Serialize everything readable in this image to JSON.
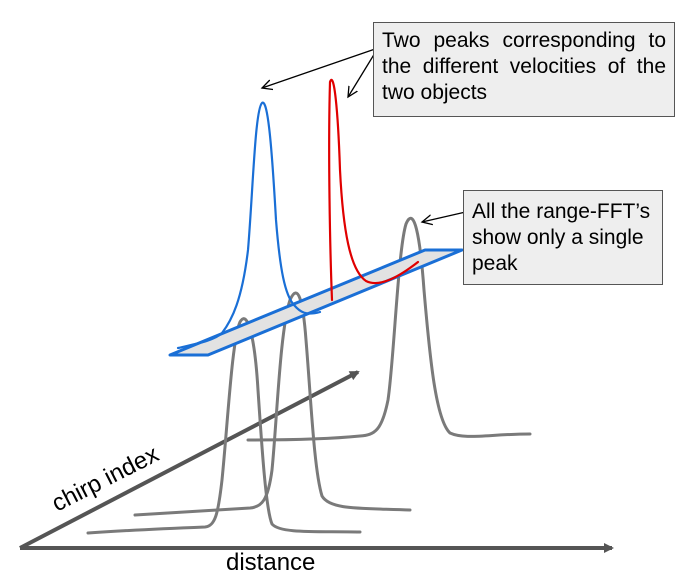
{
  "labels": {
    "chirp_axis": "chirp index",
    "distance_axis": "distance"
  },
  "callouts": {
    "velocity_peaks": "Two peaks corresponding to the different velocities of the two objects",
    "range_fft": "All the range-FFT’s show only a single peak"
  },
  "colors": {
    "range_fft_curve": "#7a7a7a",
    "axis": "#555555",
    "velocity_peak_1": "#1a6fd6",
    "velocity_peak_2": "#e00000",
    "plane_fill": "#e2e2e2",
    "plane_edge": "#1a6fd6"
  }
}
